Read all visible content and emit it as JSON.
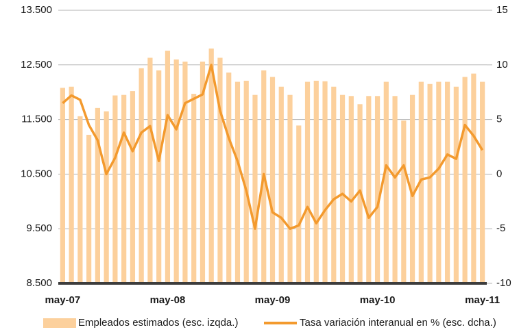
{
  "chart_data": {
    "type": "bar-line",
    "categories": [
      "may-07",
      null,
      null,
      null,
      null,
      null,
      null,
      null,
      null,
      null,
      null,
      null,
      "may-08",
      null,
      null,
      null,
      null,
      null,
      null,
      null,
      null,
      null,
      null,
      null,
      "may-09",
      null,
      null,
      null,
      null,
      null,
      null,
      null,
      null,
      null,
      null,
      null,
      "may-10",
      null,
      null,
      null,
      null,
      null,
      null,
      null,
      null,
      null,
      null,
      null,
      "may-11"
    ],
    "series": [
      {
        "name": "Empleados estimados (esc. izqda.)",
        "type": "bar",
        "color": "#fcd09c",
        "values": [
          12080,
          12100,
          11560,
          11220,
          11710,
          11650,
          11940,
          11950,
          12020,
          12440,
          12630,
          12400,
          12760,
          12600,
          12560,
          11970,
          12560,
          12800,
          12630,
          12360,
          12190,
          12210,
          11950,
          12400,
          12280,
          12100,
          11950,
          11390,
          12190,
          12210,
          12200,
          12100,
          11950,
          11930,
          11780,
          11930,
          11930,
          12190,
          11930,
          11480,
          11950,
          12190,
          12150,
          12190,
          12190,
          12100,
          12280,
          12340,
          12190
        ]
      },
      {
        "name": "Tasa variación interanual en % (esc. dcha.)",
        "type": "line",
        "axis": "y2",
        "color": "#f39a2e",
        "values": [
          6.5,
          7.2,
          6.8,
          4.5,
          3.1,
          0,
          1.5,
          3.8,
          2.1,
          3.8,
          4.4,
          1.2,
          5.4,
          4.1,
          6.5,
          6.9,
          7.3,
          10,
          5.8,
          3.3,
          1.2,
          -1.5,
          -5,
          0,
          -3.5,
          -4,
          -5,
          -4.7,
          -3,
          -4.5,
          -3.3,
          -2.3,
          -1.8,
          -2.5,
          -1.5,
          -4,
          -3,
          0.8,
          -0.3,
          0.8,
          -2,
          -0.5,
          -0.3,
          0.5,
          1.8,
          1.4,
          4.5,
          3.5,
          2.2
        ]
      }
    ],
    "ylim": [
      8500,
      13500
    ],
    "yticks": [
      {
        "value": 8500,
        "label": "8.500"
      },
      {
        "value": 9500,
        "label": "9.500"
      },
      {
        "value": 10500,
        "label": "10.500"
      },
      {
        "value": 11500,
        "label": "11.500"
      },
      {
        "value": 12500,
        "label": "12.500"
      },
      {
        "value": 13500,
        "label": "13.500"
      }
    ],
    "y2lim": [
      -10,
      15
    ],
    "y2ticks": [
      -10,
      -5,
      0,
      5,
      10,
      15
    ],
    "grid": true
  }
}
